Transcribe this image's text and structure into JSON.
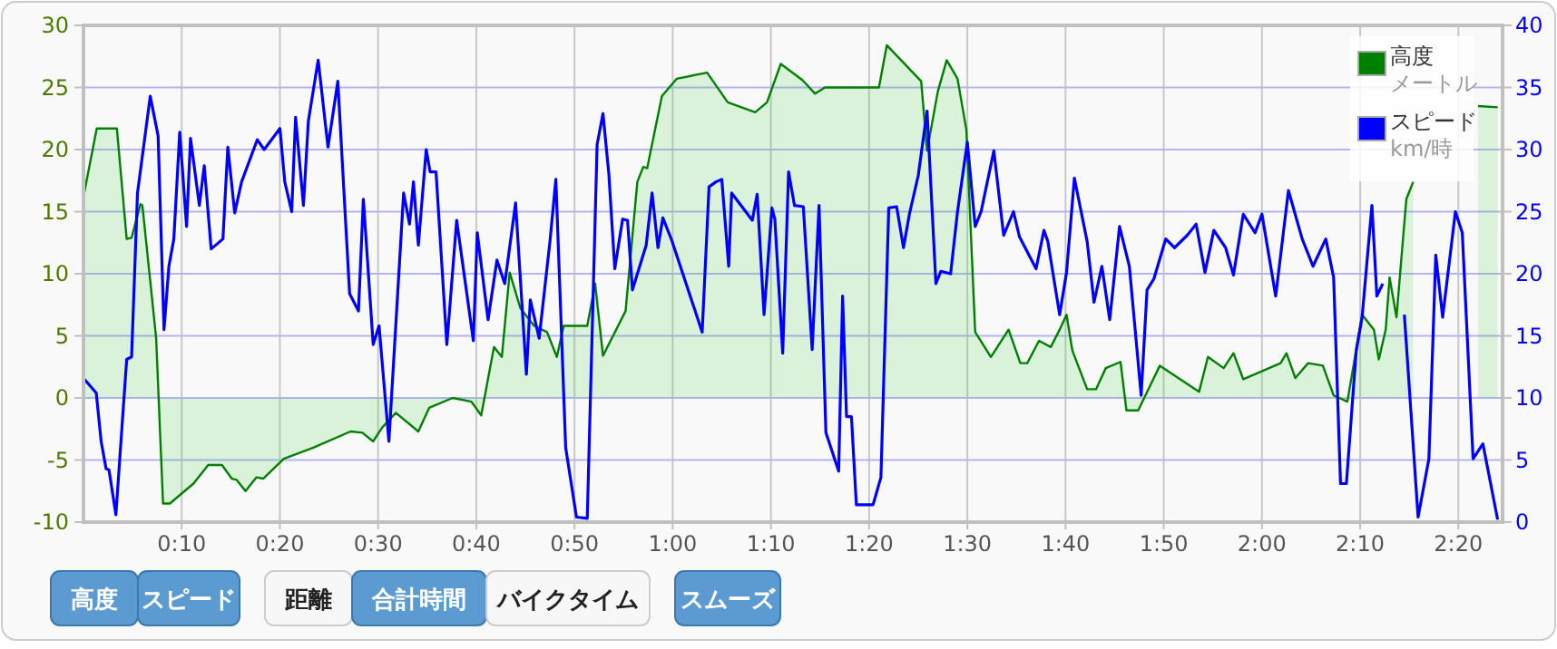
{
  "chart_data": {
    "type": "line",
    "xlim": [
      0,
      144.5
    ],
    "xticks": [
      {
        "value": 10,
        "label": "0:10"
      },
      {
        "value": 20,
        "label": "0:20"
      },
      {
        "value": 30,
        "label": "0:30"
      },
      {
        "value": 40,
        "label": "0:40"
      },
      {
        "value": 50,
        "label": "0:50"
      },
      {
        "value": 60,
        "label": "1:00"
      },
      {
        "value": 70,
        "label": "1:10"
      },
      {
        "value": 80,
        "label": "1:20"
      },
      {
        "value": 90,
        "label": "1:30"
      },
      {
        "value": 100,
        "label": "1:40"
      },
      {
        "value": 110,
        "label": "1:50"
      },
      {
        "value": 120,
        "label": "2:00"
      },
      {
        "value": 130,
        "label": "2:10"
      },
      {
        "value": 140,
        "label": "2:20"
      }
    ],
    "ylim": [
      -10,
      30
    ],
    "yticks": [
      -10,
      -5,
      0,
      5,
      10,
      15,
      20,
      25,
      30
    ],
    "y2lim": [
      0,
      40
    ],
    "y2ticks": [
      0,
      5,
      10,
      15,
      20,
      25,
      30,
      35,
      40
    ],
    "grid": true,
    "legend": "top right",
    "series": [
      {
        "name": "高度メートル",
        "type": "area",
        "color": "#008000",
        "axis": "y",
        "x": [
          0.1,
          1.35,
          3.4,
          4.4,
          4.9,
          5.8,
          6.0,
          7.4,
          8.1,
          8.8,
          11.2,
          12.7,
          14.1,
          15.1,
          15.6,
          16.5,
          17.6,
          18.3,
          20.4,
          23.4,
          27.2,
          28.4,
          29.5,
          30.4,
          31.8,
          34.1,
          35.2,
          37.6,
          39.5,
          40.5,
          41.8,
          42.6,
          43.4,
          44.5,
          45.9,
          47.2,
          48.2,
          48.9,
          51.3,
          52.1,
          52.9,
          55.2,
          56.4,
          57.0,
          57.4,
          58.9,
          60.4,
          63.5,
          65.6,
          68.4,
          69.6,
          71.0,
          73.2,
          74.5,
          75.5,
          81.0,
          81.8,
          85.3,
          85.9,
          87.0,
          87.9,
          89.0,
          89.9,
          90.8,
          92.4,
          94.2,
          95.4,
          96.1,
          97.3,
          98.5,
          99.4,
          100.1,
          100.7,
          102.2,
          103.1,
          104.1,
          105.6,
          106.2,
          107.4,
          109.6,
          113.6,
          114.5,
          116.1,
          117.1,
          118.1,
          121.9,
          122.5,
          123.4,
          124.7,
          126.2,
          127.3,
          128.7,
          130.2,
          131.4,
          131.9,
          132.6,
          133.0,
          133.7,
          134.7,
          135.4,
          136.7,
          137.9,
          142.0,
          144.0
        ],
        "values": [
          16.6,
          21.7,
          21.7,
          12.8,
          12.9,
          15.6,
          15.5,
          4.8,
          -8.5,
          -8.5,
          -6.9,
          -5.4,
          -5.4,
          -6.5,
          -6.6,
          -7.5,
          -6.4,
          -6.5,
          -4.9,
          -4.0,
          -2.7,
          -2.8,
          -3.5,
          -2.4,
          -1.2,
          -2.7,
          -0.8,
          0.0,
          -0.3,
          -1.4,
          4.1,
          3.3,
          10.1,
          7.2,
          5.8,
          5.3,
          3.3,
          5.8,
          5.8,
          9.2,
          3.4,
          7.0,
          17.4,
          18.6,
          18.5,
          24.3,
          25.7,
          26.2,
          23.8,
          23.0,
          23.8,
          26.9,
          25.6,
          24.5,
          25.0,
          25.0,
          28.4,
          25.5,
          19.9,
          24.7,
          27.2,
          25.7,
          21.6,
          5.3,
          3.3,
          5.5,
          2.8,
          2.8,
          4.6,
          4.1,
          5.5,
          6.7,
          3.8,
          0.7,
          0.7,
          2.4,
          2.9,
          -1.0,
          -1.0,
          2.6,
          0.5,
          3.3,
          2.4,
          3.6,
          1.5,
          2.8,
          3.6,
          1.6,
          2.8,
          2.6,
          0.2,
          -0.3,
          6.7,
          5.5,
          3.1,
          5.5,
          9.7,
          6.5,
          16.0,
          17.4,
          null,
          null,
          23.5,
          23.4
        ]
      },
      {
        "name": "スピードkm/時",
        "type": "line",
        "color": "#0000ff",
        "axis": "y2",
        "x": [
          0.1,
          1.3,
          1.8,
          2.3,
          2.6,
          3.3,
          4.4,
          4.9,
          5.5,
          6.8,
          7.6,
          8.2,
          8.7,
          9.2,
          9.8,
          10.5,
          10.9,
          11.8,
          12.3,
          13.0,
          14.2,
          14.7,
          15.4,
          16.1,
          17.7,
          18.4,
          20.0,
          20.5,
          21.2,
          21.6,
          22.4,
          22.9,
          23.9,
          24.9,
          25.9,
          27.1,
          28.0,
          28.5,
          29.5,
          30.1,
          31.1,
          32.6,
          33.2,
          33.6,
          34.1,
          34.9,
          35.3,
          35.9,
          37.0,
          38.0,
          39.7,
          40.1,
          41.2,
          42.1,
          42.9,
          44.0,
          45.1,
          45.5,
          46.4,
          47.5,
          48.1,
          49.1,
          50.2,
          51.3,
          52.3,
          52.9,
          53.5,
          54.1,
          54.9,
          55.4,
          55.9,
          57.3,
          57.9,
          58.5,
          59.0,
          59.9,
          63.0,
          63.7,
          64.4,
          65.0,
          65.7,
          66.0,
          68.1,
          68.6,
          69.3,
          70.1,
          70.4,
          71.2,
          71.8,
          72.4,
          73.3,
          74.2,
          74.9,
          75.6,
          76.9,
          77.3,
          77.7,
          78.2,
          78.7,
          80.4,
          81.2,
          82.0,
          82.8,
          83.5,
          84.1,
          85.0,
          85.9,
          86.8,
          87.3,
          88.3,
          89.0,
          90.0,
          90.8,
          91.4,
          92.7,
          93.7,
          94.7,
          95.3,
          97.0,
          97.8,
          98.2,
          99.4,
          100.1,
          100.9,
          102.2,
          102.9,
          103.7,
          104.5,
          105.5,
          106.5,
          107.7,
          108.3,
          109.0,
          110.2,
          111.1,
          112.4,
          113.3,
          114.2,
          115.1,
          116.3,
          117.1,
          118.1,
          119.3,
          120.0,
          121.4,
          122.7,
          124.1,
          125.2,
          126.5,
          127.3,
          128.0,
          128.6,
          129.6,
          130.2,
          131.2,
          131.7,
          132.3,
          133.7,
          134.5,
          135.9,
          137.0,
          137.7,
          138.4,
          139.7,
          140.4,
          141.5,
          142.5,
          144.0
        ],
        "values": [
          11.5,
          10.4,
          6.5,
          4.3,
          4.2,
          0.6,
          13.1,
          13.3,
          26.5,
          34.3,
          31.1,
          15.5,
          20.6,
          22.8,
          31.4,
          23.8,
          30.9,
          25.5,
          28.7,
          22.0,
          22.8,
          30.2,
          24.9,
          27.4,
          30.8,
          30.0,
          31.7,
          27.4,
          25.0,
          32.6,
          25.5,
          32.3,
          37.2,
          30.2,
          35.5,
          18.4,
          17.0,
          26.0,
          14.3,
          15.8,
          6.5,
          26.5,
          24.0,
          27.4,
          22.3,
          30.0,
          28.2,
          28.2,
          14.3,
          24.3,
          14.6,
          23.3,
          16.3,
          21.1,
          19.2,
          25.7,
          11.9,
          17.9,
          14.8,
          22.6,
          27.6,
          6.0,
          0.4,
          0.3,
          30.4,
          32.9,
          28.0,
          20.4,
          24.4,
          24.3,
          18.7,
          22.3,
          26.5,
          22.1,
          24.5,
          22.7,
          15.3,
          27.0,
          27.4,
          27.6,
          20.6,
          26.5,
          24.3,
          26.4,
          16.7,
          25.3,
          24.4,
          13.6,
          28.2,
          25.5,
          25.4,
          13.9,
          25.5,
          7.2,
          4.1,
          18.2,
          8.5,
          8.5,
          1.4,
          1.4,
          3.6,
          25.3,
          25.4,
          22.1,
          24.8,
          27.9,
          33.1,
          19.2,
          20.2,
          20.0,
          25.0,
          30.6,
          23.8,
          25.0,
          29.9,
          23.1,
          25.0,
          23.0,
          20.4,
          23.5,
          22.6,
          16.7,
          20.1,
          27.7,
          22.6,
          17.7,
          20.6,
          16.3,
          23.8,
          20.6,
          10.2,
          18.7,
          19.6,
          22.8,
          22.1,
          23.1,
          24.0,
          20.1,
          23.5,
          22.1,
          19.9,
          24.8,
          23.3,
          24.8,
          18.2,
          26.7,
          22.8,
          20.6,
          22.8,
          19.7,
          3.1,
          3.1,
          13.8,
          16.5,
          25.5,
          18.2,
          19.2,
          null,
          16.7,
          0.4,
          5.1,
          21.5,
          16.5,
          25.0,
          23.3,
          5.1,
          6.3,
          0.2
        ]
      }
    ],
    "annotations": [
      "高度",
      "スピード",
      "距離",
      "合計時間",
      "バイクタイム",
      "スムーズ"
    ]
  }
}
